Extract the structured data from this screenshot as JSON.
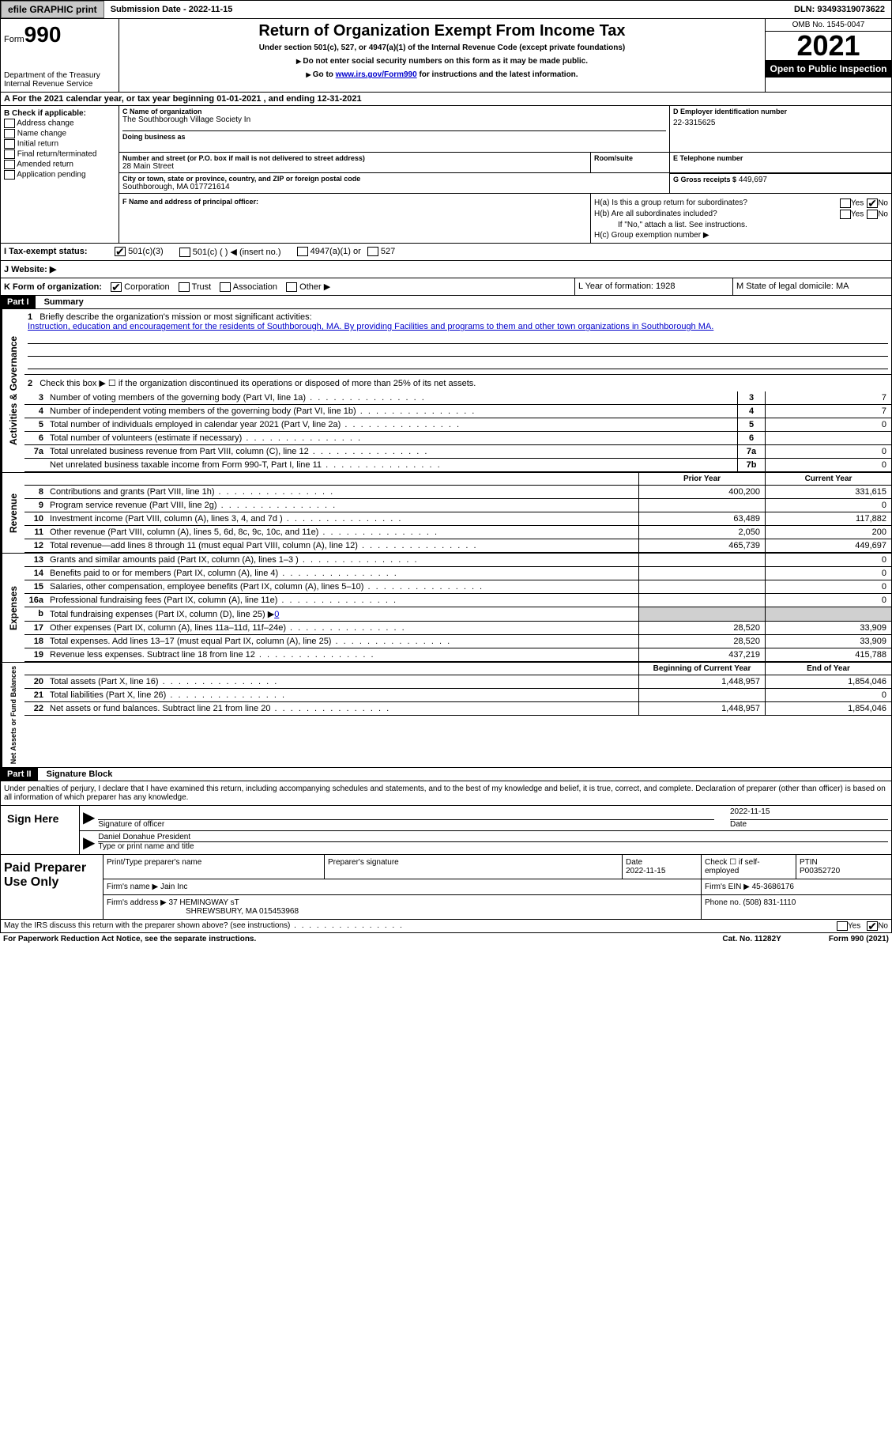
{
  "topbar": {
    "efile": "efile GRAPHIC print",
    "sub_date": "Submission Date - 2022-11-15",
    "dln": "DLN: 93493319073622"
  },
  "header": {
    "form_label": "Form",
    "form_num": "990",
    "dept": "Department of the Treasury",
    "irs": "Internal Revenue Service",
    "title": "Return of Organization Exempt From Income Tax",
    "subtitle": "Under section 501(c), 527, or 4947(a)(1) of the Internal Revenue Code (except private foundations)",
    "note1": "Do not enter social security numbers on this form as it may be made public.",
    "note2_pre": "Go to ",
    "note2_link": "www.irs.gov/Form990",
    "note2_post": " for instructions and the latest information.",
    "omb": "OMB No. 1545-0047",
    "year": "2021",
    "inspection": "Open to Public Inspection"
  },
  "section_a": "A For the 2021 calendar year, or tax year beginning 01-01-2021   , and ending 12-31-2021",
  "col_b": {
    "header": "B Check if applicable:",
    "items": [
      "Address change",
      "Name change",
      "Initial return",
      "Final return/terminated",
      "Amended return",
      "Application pending"
    ]
  },
  "col_c": {
    "name_label": "C Name of organization",
    "name": "The Southborough Village Society In",
    "dba_label": "Doing business as",
    "addr_label": "Number and street (or P.O. box if mail is not delivered to street address)",
    "addr": "28 Main Street",
    "room_label": "Room/suite",
    "city_label": "City or town, state or province, country, and ZIP or foreign postal code",
    "city": "Southborough, MA  017721614"
  },
  "col_d": {
    "ein_label": "D Employer identification number",
    "ein": "22-3315625",
    "phone_label": "E Telephone number",
    "receipts_label": "G Gross receipts $",
    "receipts": "449,697"
  },
  "row_f": {
    "label": "F Name and address of principal officer:"
  },
  "row_h": {
    "ha": "H(a)  Is this a group return for subordinates?",
    "hb": "H(b)  Are all subordinates included?",
    "hb_note": "If \"No,\" attach a list. See instructions.",
    "hc": "H(c)  Group exemption number ▶",
    "yes": "Yes",
    "no": "No"
  },
  "row_i": {
    "label": "I   Tax-exempt status:",
    "opt1": "501(c)(3)",
    "opt2": "501(c) (  ) ◀ (insert no.)",
    "opt3": "4947(a)(1) or",
    "opt4": "527"
  },
  "row_j": {
    "label": "J   Website: ▶"
  },
  "row_k": {
    "label": "K Form of organization:",
    "corp": "Corporation",
    "trust": "Trust",
    "assoc": "Association",
    "other": "Other ▶",
    "l": "L Year of formation: 1928",
    "m": "M State of legal domicile: MA"
  },
  "part1": {
    "header": "Part I",
    "title": "Summary",
    "line1_label": "Briefly describe the organization's mission or most significant activities:",
    "line1_text": "Instruction, education and encouragement for the residents of Southborough, MA. By providing Facilities and programs to them and other town organizations in Southborough MA.",
    "line2": "Check this box ▶ ☐  if the organization discontinued its operations or disposed of more than 25% of its net assets.",
    "lines": [
      {
        "n": "3",
        "t": "Number of voting members of the governing body (Part VI, line 1a)",
        "box": "3",
        "v": "7"
      },
      {
        "n": "4",
        "t": "Number of independent voting members of the governing body (Part VI, line 1b)",
        "box": "4",
        "v": "7"
      },
      {
        "n": "5",
        "t": "Total number of individuals employed in calendar year 2021 (Part V, line 2a)",
        "box": "5",
        "v": "0"
      },
      {
        "n": "6",
        "t": "Total number of volunteers (estimate if necessary)",
        "box": "6",
        "v": ""
      },
      {
        "n": "7a",
        "t": "Total unrelated business revenue from Part VIII, column (C), line 12",
        "box": "7a",
        "v": "0"
      },
      {
        "n": "",
        "t": "Net unrelated business taxable income from Form 990-T, Part I, line 11",
        "box": "7b",
        "v": "0"
      }
    ]
  },
  "revenue": {
    "label": "Revenue",
    "header_prior": "Prior Year",
    "header_current": "Current Year",
    "lines": [
      {
        "n": "8",
        "t": "Contributions and grants (Part VIII, line 1h)",
        "p": "400,200",
        "c": "331,615"
      },
      {
        "n": "9",
        "t": "Program service revenue (Part VIII, line 2g)",
        "p": "",
        "c": "0"
      },
      {
        "n": "10",
        "t": "Investment income (Part VIII, column (A), lines 3, 4, and 7d )",
        "p": "63,489",
        "c": "117,882"
      },
      {
        "n": "11",
        "t": "Other revenue (Part VIII, column (A), lines 5, 6d, 8c, 9c, 10c, and 11e)",
        "p": "2,050",
        "c": "200"
      },
      {
        "n": "12",
        "t": "Total revenue—add lines 8 through 11 (must equal Part VIII, column (A), line 12)",
        "p": "465,739",
        "c": "449,697"
      }
    ]
  },
  "expenses": {
    "label": "Expenses",
    "lines": [
      {
        "n": "13",
        "t": "Grants and similar amounts paid (Part IX, column (A), lines 1–3 )",
        "p": "",
        "c": "0"
      },
      {
        "n": "14",
        "t": "Benefits paid to or for members (Part IX, column (A), line 4)",
        "p": "",
        "c": "0"
      },
      {
        "n": "15",
        "t": "Salaries, other compensation, employee benefits (Part IX, column (A), lines 5–10)",
        "p": "",
        "c": "0"
      },
      {
        "n": "16a",
        "t": "Professional fundraising fees (Part IX, column (A), line 11e)",
        "p": "",
        "c": "0"
      }
    ],
    "line_b": "Total fundraising expenses (Part IX, column (D), line 25) ▶",
    "line_b_val": "0",
    "lines2": [
      {
        "n": "17",
        "t": "Other expenses (Part IX, column (A), lines 11a–11d, 11f–24e)",
        "p": "28,520",
        "c": "33,909"
      },
      {
        "n": "18",
        "t": "Total expenses. Add lines 13–17 (must equal Part IX, column (A), line 25)",
        "p": "28,520",
        "c": "33,909"
      },
      {
        "n": "19",
        "t": "Revenue less expenses. Subtract line 18 from line 12",
        "p": "437,219",
        "c": "415,788"
      }
    ]
  },
  "netassets": {
    "label": "Net Assets or Fund Balances",
    "header_begin": "Beginning of Current Year",
    "header_end": "End of Year",
    "lines": [
      {
        "n": "20",
        "t": "Total assets (Part X, line 16)",
        "p": "1,448,957",
        "c": "1,854,046"
      },
      {
        "n": "21",
        "t": "Total liabilities (Part X, line 26)",
        "p": "",
        "c": "0"
      },
      {
        "n": "22",
        "t": "Net assets or fund balances. Subtract line 21 from line 20",
        "p": "1,448,957",
        "c": "1,854,046"
      }
    ]
  },
  "part2": {
    "header": "Part II",
    "title": "Signature Block",
    "text": "Under penalties of perjury, I declare that I have examined this return, including accompanying schedules and statements, and to the best of my knowledge and belief, it is true, correct, and complete. Declaration of preparer (other than officer) is based on all information of which preparer has any knowledge.",
    "sign_here": "Sign Here",
    "sig_officer": "Signature of officer",
    "sig_date": "2022-11-15",
    "date_label": "Date",
    "officer_name": "Daniel Donahue  President",
    "officer_label": "Type or print name and title"
  },
  "paid": {
    "label": "Paid Preparer Use Only",
    "h1": "Print/Type preparer's name",
    "h2": "Preparer's signature",
    "h3_label": "Date",
    "h3": "2022-11-15",
    "h4": "Check ☐ if self-employed",
    "h5_label": "PTIN",
    "h5": "P00352720",
    "firm_name_label": "Firm's name    ▶",
    "firm_name": "Jain Inc",
    "firm_ein_label": "Firm's EIN ▶",
    "firm_ein": "45-3686176",
    "firm_addr_label": "Firm's address ▶",
    "firm_addr1": "37 HEMINGWAY sT",
    "firm_addr2": "SHREWSBURY, MA  015453968",
    "phone_label": "Phone no.",
    "phone": "(508) 831-1110"
  },
  "footer": {
    "discuss": "May the IRS discuss this return with the preparer shown above? (see instructions)",
    "yes": "Yes",
    "no": "No",
    "paperwork": "For Paperwork Reduction Act Notice, see the separate instructions.",
    "cat": "Cat. No. 11282Y",
    "form": "Form 990 (2021)"
  }
}
